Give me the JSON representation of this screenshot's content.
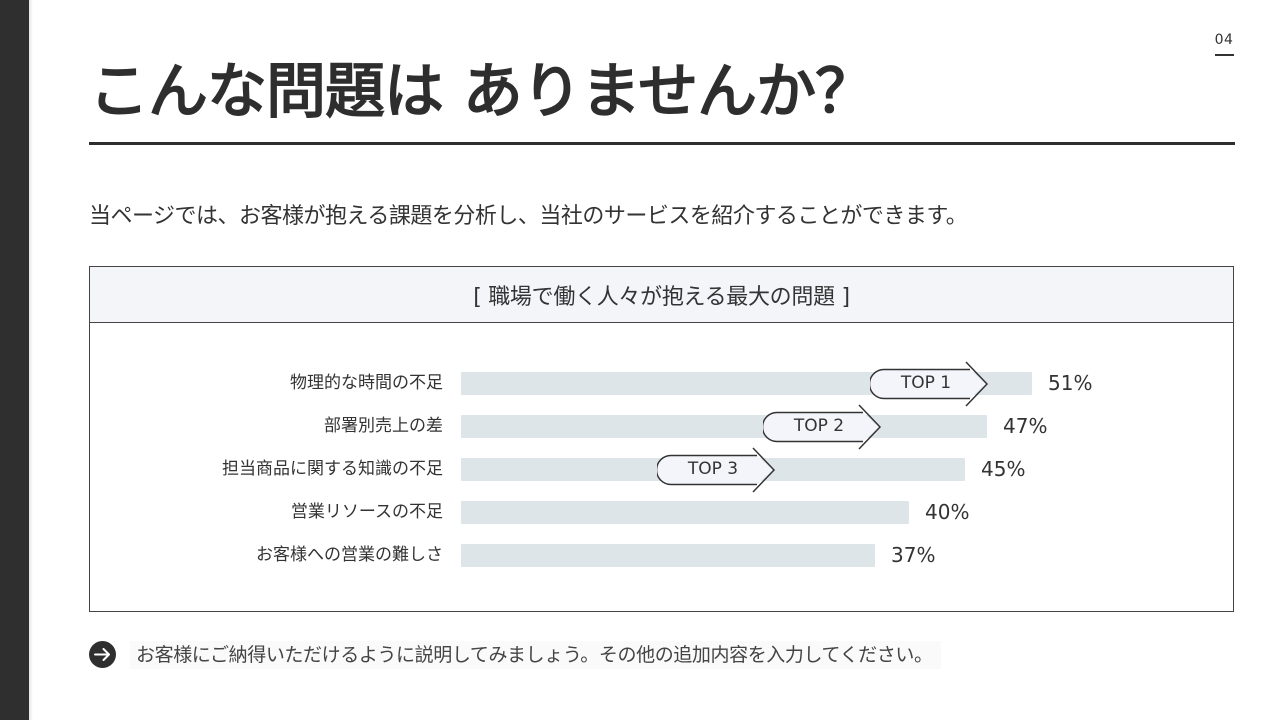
{
  "page": {
    "number": "04",
    "title": "こんな問題は ありませんか？",
    "intro": "当ページでは、お客様が抱える課題を分析し、当社のサービスを紹介することができます。",
    "note": "お客様にご納得いただけるように説明してみましょう。その他の追加内容を入力してください。",
    "note_icon": "arrow-right-circle-icon"
  },
  "colors": {
    "side_strip": "#2f2f2f",
    "bar": "#dde5e9",
    "header_band": "#f3f5f9",
    "text": "#333333",
    "badge_fill": "#f3f5fb"
  },
  "chart_data": {
    "type": "bar",
    "orientation": "horizontal",
    "title": "[ 職場で働く人々が抱える最大の問題 ]",
    "categories": [
      "物理的な時間の不足",
      "部署別売上の差",
      "担当商品に関する知識の不足",
      "営業リソースの不足",
      "お客様への営業の難しさ"
    ],
    "values": [
      51,
      47,
      45,
      40,
      37
    ],
    "value_labels": [
      "51%",
      "47%",
      "45%",
      "40%",
      "37%"
    ],
    "unit": "%",
    "xlabel": "",
    "ylabel": "",
    "grid": false,
    "legend": null,
    "annotations": [
      {
        "label": "TOP 1",
        "category": "物理的な時間の不足"
      },
      {
        "label": "TOP 2",
        "category": "部署別売上の差"
      },
      {
        "label": "TOP 3",
        "category": "担当商品に関する知識の不足"
      }
    ]
  }
}
